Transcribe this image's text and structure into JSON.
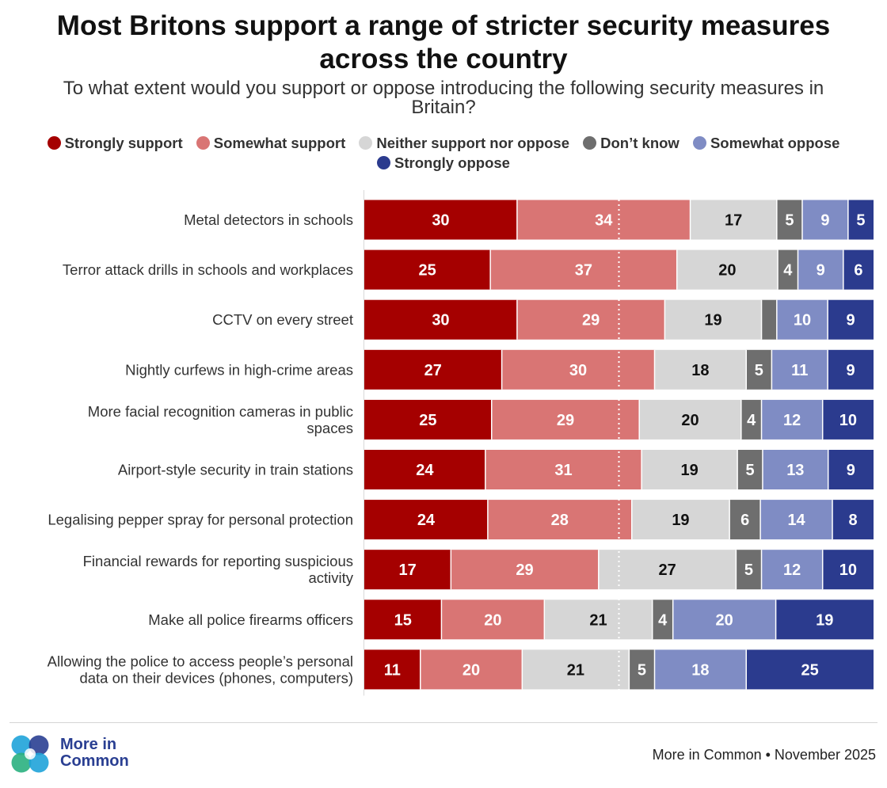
{
  "colors": {
    "strongly_support": "#a50000",
    "somewhat_support": "#d97574",
    "neither": "#d6d6d6",
    "dont_know": "#6e6e6e",
    "somewhat_oppose": "#7f8cc4",
    "strongly_oppose": "#2b3b8e",
    "brand_blue": "#2a3f92"
  },
  "header": {
    "title_line1": "Most Britons support a range of stricter security measures",
    "title_line2": "across the country",
    "subtitle_line1": "To what extent would you support or oppose introducing the following security measures in",
    "subtitle_line2": "Britain?"
  },
  "chart_data": {
    "type": "bar",
    "orientation": "horizontal-stacked",
    "title": "Most Britons support a range of stricter security measures across the country",
    "subtitle": "To what extent would you support or oppose introducing the following security measures in Britain?",
    "xlabel": "",
    "ylabel": "",
    "xlim": [
      0,
      100
    ],
    "legend_position": "top",
    "categories": [
      "Metal detectors in schools",
      "Terror attack drills in schools and workplaces",
      "CCTV on every street",
      "Nightly curfews in high-crime areas",
      "More facial recognition cameras in public spaces",
      "Airport-style security in train stations",
      "Legalising pepper spray for personal protection",
      "Financial rewards for reporting suspicious activity",
      "Make all police firearms officers",
      "Allowing the police to access people's personal data on their devices (phones, computers)"
    ],
    "category_lines": [
      [
        "Metal detectors in schools"
      ],
      [
        "Terror attack drills in schools and workplaces"
      ],
      [
        "CCTV on every street"
      ],
      [
        "Nightly curfews in high-crime areas"
      ],
      [
        "More facial recognition cameras in public",
        "spaces"
      ],
      [
        "Airport-style security in train stations"
      ],
      [
        "Legalising pepper spray for personal protection"
      ],
      [
        "Financial rewards for reporting suspicious",
        "activity"
      ],
      [
        "Make all police firearms officers"
      ],
      [
        "Allowing the police to access people’s personal",
        "data on their devices (phones, computers)"
      ]
    ],
    "series": [
      {
        "name": "Strongly support",
        "values": [
          30,
          25,
          30,
          27,
          25,
          24,
          24,
          17,
          15,
          11
        ]
      },
      {
        "name": "Somewhat support",
        "values": [
          34,
          37,
          29,
          30,
          29,
          31,
          28,
          29,
          20,
          20
        ]
      },
      {
        "name": "Neither support nor oppose",
        "values": [
          17,
          20,
          19,
          18,
          20,
          19,
          19,
          27,
          21,
          21
        ]
      },
      {
        "name": "Don’t know",
        "values": [
          5,
          4,
          3,
          5,
          4,
          5,
          6,
          5,
          4,
          5
        ]
      },
      {
        "name": "Somewhat oppose",
        "values": [
          9,
          9,
          10,
          11,
          12,
          13,
          14,
          12,
          20,
          18
        ]
      },
      {
        "name": "Strongly oppose",
        "values": [
          5,
          6,
          9,
          9,
          10,
          9,
          8,
          10,
          19,
          25
        ]
      }
    ],
    "value_labels_shown": [
      [
        true,
        true,
        true,
        true,
        true,
        true
      ],
      [
        true,
        true,
        true,
        true,
        true,
        true
      ],
      [
        true,
        true,
        true,
        false,
        true,
        true
      ],
      [
        true,
        true,
        true,
        true,
        true,
        true
      ],
      [
        true,
        true,
        true,
        true,
        true,
        true
      ],
      [
        true,
        true,
        true,
        true,
        true,
        true
      ],
      [
        true,
        true,
        true,
        true,
        true,
        true
      ],
      [
        true,
        true,
        true,
        true,
        true,
        true
      ],
      [
        true,
        true,
        true,
        true,
        true,
        true
      ],
      [
        true,
        true,
        true,
        true,
        true,
        true
      ]
    ],
    "reference_line": 50
  },
  "legend": {
    "items": [
      {
        "label": "Strongly support",
        "color": "#a50000"
      },
      {
        "label": "Somewhat support",
        "color": "#d97574"
      },
      {
        "label": "Neither support nor oppose",
        "color": "#d6d6d6"
      },
      {
        "label": "Don’t know",
        "color": "#6e6e6e"
      },
      {
        "label": "Somewhat oppose",
        "color": "#7f8cc4"
      },
      {
        "label": "Strongly oppose",
        "color": "#2b3b8e"
      }
    ]
  },
  "footer": {
    "logo_line1": "More in",
    "logo_line2": "Common",
    "source": "More in Common • November 2025"
  }
}
